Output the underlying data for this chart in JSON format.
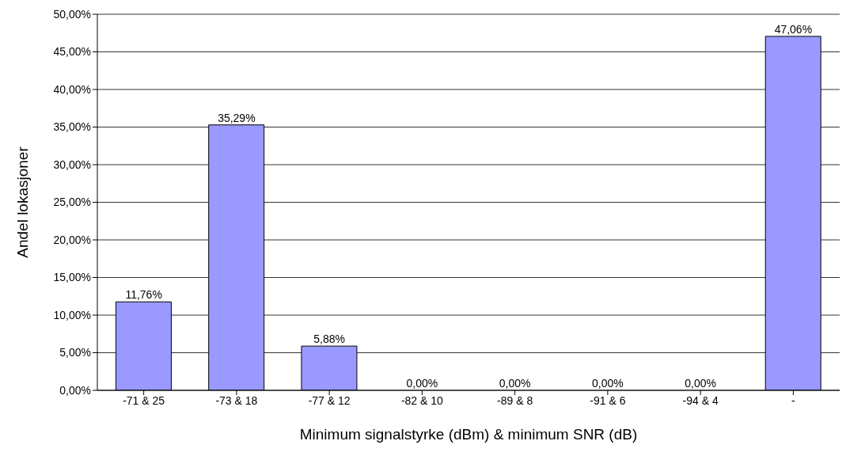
{
  "chart_data": {
    "type": "bar",
    "categories": [
      "-71 & 25",
      "-73 & 18",
      "-77 & 12",
      "-82 & 10",
      "-89 & 8",
      "-91 & 6",
      "-94 & 4",
      "-"
    ],
    "values": [
      11.76,
      35.29,
      5.88,
      0,
      0,
      0,
      0,
      47.06
    ],
    "value_labels": [
      "11,76%",
      "35,29%",
      "5,88%",
      "0,00%",
      "0,00%",
      "0,00%",
      "0,00%",
      "47,06%"
    ],
    "color": "#9999ff",
    "xlabel": "Minimum signalstyrke (dBm) & minimum SNR (dB)",
    "ylabel": "Andel lokasjoner",
    "ylim": [
      0,
      50
    ],
    "yticks": [
      {
        "value": 0,
        "label": "0,00%"
      },
      {
        "value": 5,
        "label": "5,00%"
      },
      {
        "value": 10,
        "label": "10,00%"
      },
      {
        "value": 15,
        "label": "15,00%"
      },
      {
        "value": 20,
        "label": "20,00%"
      },
      {
        "value": 25,
        "label": "25,00%"
      },
      {
        "value": 30,
        "label": "30,00%"
      },
      {
        "value": 35,
        "label": "35,00%"
      },
      {
        "value": 40,
        "label": "40,00%"
      },
      {
        "value": 45,
        "label": "45,00%"
      },
      {
        "value": 50,
        "label": "50,00%"
      }
    ],
    "grid": "y",
    "legend": false
  }
}
